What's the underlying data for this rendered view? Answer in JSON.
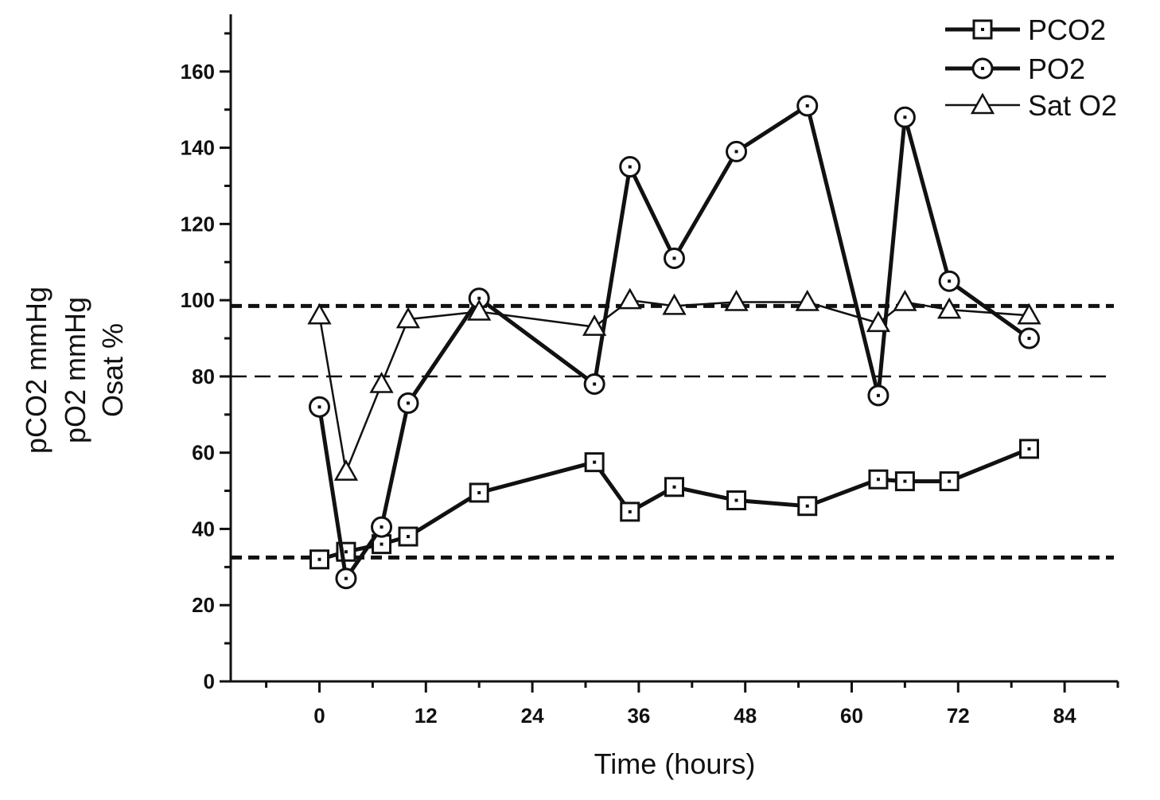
{
  "chart_data": {
    "type": "line",
    "title": "",
    "xlabel": "Time (hours)",
    "ylabel_lines": [
      "pCO2 mmHg",
      "pO2 mmHg",
      "Osat %"
    ],
    "xlim": [
      -10,
      90
    ],
    "ylim": [
      0,
      175
    ],
    "x_ticks": [
      0,
      12,
      24,
      36,
      48,
      60,
      72,
      84
    ],
    "x_tick_labels": [
      "0",
      "12",
      "24",
      "36",
      "48",
      "60",
      "72",
      "84"
    ],
    "y_ticks": [
      0,
      20,
      40,
      60,
      80,
      100,
      120,
      140,
      160
    ],
    "y_tick_labels": [
      "0",
      "20",
      "40",
      "60",
      "80",
      "100",
      "120",
      "140",
      "160"
    ],
    "reference_lines": [
      {
        "y": 98.5,
        "style": "thick-dashed"
      },
      {
        "y": 80,
        "style": "thin-dashed"
      },
      {
        "y": 32.5,
        "style": "thick-dashed"
      }
    ],
    "legend_position": "top-right",
    "series": [
      {
        "name": "PCO2",
        "marker": "square",
        "line": "thick",
        "x": [
          0,
          3,
          7,
          10,
          18,
          31,
          35,
          40,
          47,
          55,
          63,
          66,
          71,
          80
        ],
        "y": [
          32,
          34,
          36,
          38,
          49.5,
          57.5,
          44.5,
          51,
          47.5,
          46,
          53,
          52.5,
          52.5,
          61
        ]
      },
      {
        "name": "PO2",
        "marker": "circle",
        "line": "thick",
        "x": [
          0,
          3,
          7,
          10,
          18,
          31,
          35,
          40,
          47,
          55,
          63,
          66,
          71,
          80
        ],
        "y": [
          72,
          27,
          40.5,
          73,
          100.5,
          78,
          135,
          111,
          139,
          151,
          75,
          148,
          105,
          90
        ]
      },
      {
        "name": "Sat O2",
        "marker": "triangle",
        "line": "thin",
        "x": [
          0,
          3,
          7,
          10,
          18,
          31,
          35,
          40,
          47,
          55,
          63,
          66,
          71,
          80
        ],
        "y": [
          96,
          55,
          78,
          95,
          97,
          93,
          100,
          98.5,
          99.5,
          99.5,
          94,
          99.5,
          97.5,
          96
        ]
      }
    ],
    "legend_labels": [
      "PCO2",
      "PO2",
      "Sat O2"
    ]
  }
}
